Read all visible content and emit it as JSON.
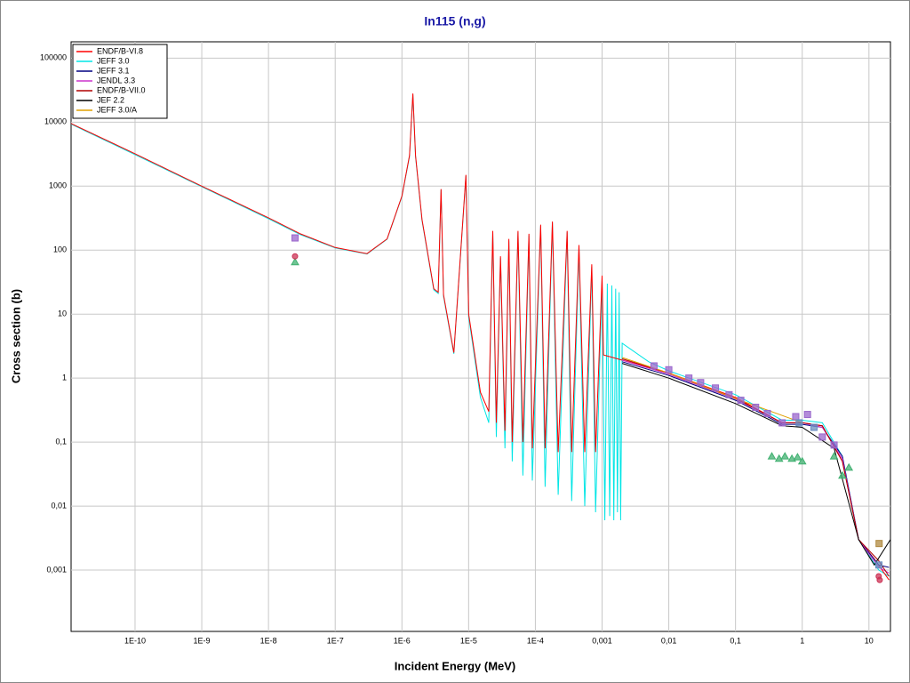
{
  "chart_data": {
    "type": "line",
    "title": "In115 (n,g)",
    "x_label": "Incident Energy (MeV)",
    "y_label": "Cross section (b)",
    "xscale": "log",
    "yscale": "log",
    "grid": true,
    "legend": "upper-left",
    "xlim": [
      1.1e-11,
      21
    ],
    "ylim": [
      0.00011,
      180000
    ],
    "xticks": [
      {
        "value": 1e-10,
        "label": "1E-10"
      },
      {
        "value": 1e-09,
        "label": "1E-9"
      },
      {
        "value": 1e-08,
        "label": "1E-8"
      },
      {
        "value": 1e-07,
        "label": "1E-7"
      },
      {
        "value": 1e-06,
        "label": "1E-6"
      },
      {
        "value": 1e-05,
        "label": "1E-5"
      },
      {
        "value": 0.0001,
        "label": "1E-4"
      },
      {
        "value": 0.001,
        "label": "0,001"
      },
      {
        "value": 0.01,
        "label": "0,01"
      },
      {
        "value": 0.1,
        "label": "0,1"
      },
      1,
      10
    ],
    "yticks": [
      {
        "value": 0.001,
        "label": "0,001"
      },
      {
        "value": 0.01,
        "label": "0,01"
      },
      {
        "value": 0.1,
        "label": "0,1"
      },
      1,
      10,
      100,
      1000,
      10000,
      100000
    ],
    "series": [
      {
        "name": "JEFF 3.0",
        "color": "#00e5e5",
        "x": [
          1.1e-11,
          1e-10,
          1e-09,
          1e-08,
          3e-08,
          1e-07,
          3e-07,
          6e-07,
          1e-06,
          1.3e-06,
          1.46e-06,
          1.6e-06,
          2e-06,
          3e-06,
          3.5e-06,
          3.86e-06,
          4.2e-06,
          6e-06,
          9.1e-06,
          1e-05,
          1.5e-05,
          2e-05,
          2.3e-05,
          2.6e-05,
          3e-05,
          3.5e-05,
          4e-05,
          4.5e-05,
          5.5e-05,
          6.5e-05,
          8e-05,
          9e-05,
          0.00012,
          0.00014,
          0.00018,
          0.00022,
          0.0003,
          0.00035,
          0.00045,
          0.00055,
          0.0007,
          0.0008,
          0.001,
          0.0011,
          0.0012,
          0.0013,
          0.0014,
          0.0015,
          0.0016,
          0.0017,
          0.0018,
          0.0019,
          0.002,
          0.005,
          0.01,
          0.1,
          0.5,
          1,
          2,
          4,
          7,
          14,
          20
        ],
        "values": [
          9300,
          3100,
          980,
          310,
          175,
          108,
          87,
          148,
          690,
          2900,
          27000,
          2900,
          290,
          24,
          21,
          880,
          19,
          2.4,
          1450,
          9,
          0.5,
          0.2,
          190,
          0.12,
          75,
          0.08,
          140,
          0.05,
          190,
          0.03,
          170,
          0.025,
          240,
          0.02,
          270,
          0.015,
          190,
          0.012,
          110,
          0.01,
          55,
          0.008,
          35,
          0.006,
          30,
          0.007,
          28,
          0.006,
          25,
          0.008,
          22,
          0.006,
          3.5,
          1.8,
          1.3,
          0.55,
          0.22,
          0.22,
          0.2,
          0.06,
          0.003,
          0.001,
          0.0008
        ]
      },
      {
        "name": "ENDF/B-VI.8",
        "color": "#ff0000",
        "x": [
          1.1e-11,
          1e-10,
          1e-09,
          1e-08,
          3e-08,
          1e-07,
          3e-07,
          6e-07,
          1e-06,
          1.3e-06,
          1.46e-06,
          1.6e-06,
          2e-06,
          3e-06,
          3.5e-06,
          3.86e-06,
          4.2e-06,
          6e-06,
          9.1e-06,
          1e-05,
          1.5e-05,
          2e-05,
          2.3e-05,
          2.6e-05,
          3e-05,
          3.5e-05,
          4e-05,
          4.5e-05,
          5.5e-05,
          6.5e-05,
          8e-05,
          9e-05,
          0.00012,
          0.00014,
          0.00018,
          0.00022,
          0.0003,
          0.00035,
          0.00045,
          0.00055,
          0.0007,
          0.0008,
          0.001,
          0.00105,
          0.01,
          0.1,
          0.5,
          1,
          2,
          4,
          7,
          12,
          20
        ],
        "values": [
          9500,
          3200,
          1000,
          320,
          180,
          110,
          88,
          150,
          700,
          3000,
          28000,
          3000,
          300,
          25,
          22,
          900,
          20,
          2.5,
          1500,
          10,
          0.6,
          0.3,
          200,
          0.2,
          80,
          0.15,
          150,
          0.1,
          200,
          0.1,
          180,
          0.08,
          250,
          0.08,
          280,
          0.07,
          200,
          0.07,
          120,
          0.07,
          60,
          0.07,
          40,
          2.3,
          1.2,
          0.5,
          0.2,
          0.2,
          0.18,
          0.05,
          0.003,
          0.0015,
          0.0007
        ]
      },
      {
        "name": "JEFF 3.1",
        "color": "#000080",
        "x": [
          0.002,
          0.01,
          0.1,
          0.5,
          1,
          2,
          4,
          7,
          14,
          20
        ],
        "values": [
          1.8,
          1.1,
          0.45,
          0.19,
          0.19,
          0.17,
          0.06,
          0.003,
          0.0012,
          0.0011
        ]
      },
      {
        "name": "JENDL 3.3",
        "color": "#cc33cc",
        "x": [
          0.002,
          0.01,
          0.1,
          0.5,
          1,
          2,
          4,
          7,
          14,
          20
        ],
        "values": [
          1.9,
          1.15,
          0.47,
          0.2,
          0.2,
          0.17,
          0.055,
          0.003,
          0.0011,
          0.0009
        ]
      },
      {
        "name": "ENDF/B-VII.0",
        "color": "#b00000",
        "x": [
          0.002,
          0.01,
          0.1,
          0.5,
          1,
          2,
          4,
          7,
          14,
          20
        ],
        "values": [
          2.0,
          1.2,
          0.48,
          0.2,
          0.2,
          0.18,
          0.05,
          0.003,
          0.0014,
          0.0008
        ]
      },
      {
        "name": "JEF 2.2",
        "color": "#000000",
        "x": [
          0.002,
          0.01,
          0.1,
          0.5,
          1,
          3,
          7,
          12,
          21
        ],
        "values": [
          1.7,
          1.0,
          0.4,
          0.18,
          0.17,
          0.08,
          0.003,
          0.0012,
          0.003
        ]
      },
      {
        "name": "JEFF 3.0/A",
        "color": "#e0a000",
        "x": [
          0.002,
          0.01,
          0.1,
          1
        ],
        "values": [
          2.1,
          1.2,
          0.48,
          0.2
        ]
      }
    ],
    "markers": [
      {
        "color": "#9966cc",
        "shape": "square",
        "x": [
          2.5e-08,
          0.006,
          0.01,
          0.02,
          0.03,
          0.05,
          0.08,
          0.12,
          0.2,
          0.3,
          0.5,
          0.8,
          1.2,
          2,
          3
        ],
        "values": [
          155,
          1.55,
          1.35,
          1.0,
          0.85,
          0.7,
          0.55,
          0.45,
          0.35,
          0.28,
          0.2,
          0.25,
          0.27,
          0.12,
          0.09
        ]
      },
      {
        "color": "#40b070",
        "shape": "triangle",
        "x": [
          2.5e-08,
          0.35,
          0.45,
          0.55,
          0.7,
          0.85,
          1.0,
          3,
          4,
          5
        ],
        "values": [
          65,
          0.06,
          0.055,
          0.06,
          0.055,
          0.058,
          0.05,
          0.06,
          0.03,
          0.04
        ]
      },
      {
        "color": "#cc3355",
        "shape": "circle",
        "x": [
          2.5e-08,
          14,
          14.5
        ],
        "values": [
          80,
          0.0008,
          0.0007
        ]
      },
      {
        "color": "#b08a40",
        "shape": "square",
        "x": [
          14.2
        ],
        "values": [
          0.0026
        ]
      },
      {
        "color": "#6a8cc0",
        "shape": "square",
        "x": [
          14.1,
          1.5,
          0.9
        ],
        "values": [
          0.0012,
          0.17,
          0.2
        ]
      }
    ]
  }
}
